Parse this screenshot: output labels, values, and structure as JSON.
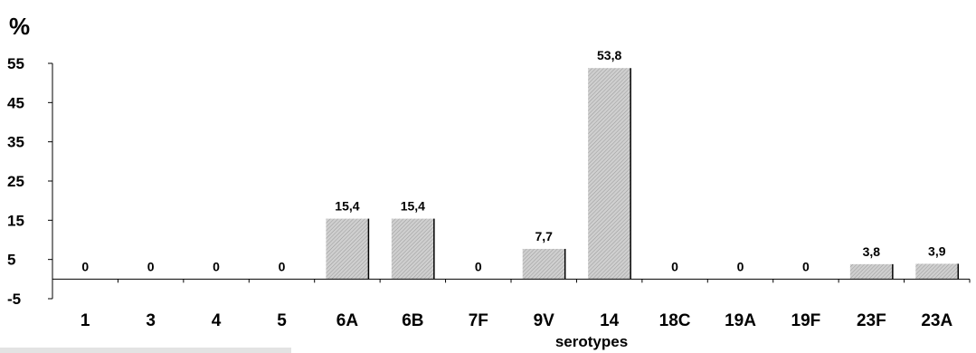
{
  "chart_data": {
    "type": "bar",
    "ylabel": "%",
    "xlabel": "serotypes",
    "ylim": [
      -5,
      55
    ],
    "yticks": [
      "55",
      "45",
      "35",
      "25",
      "15",
      "5",
      "-5"
    ],
    "ytick_values": [
      55,
      45,
      35,
      25,
      15,
      5,
      -5
    ],
    "categories": [
      "1",
      "3",
      "4",
      "5",
      "6A",
      "6B",
      "7F",
      "9V",
      "14",
      "18C",
      "19A",
      "19F",
      "23F",
      "23A"
    ],
    "values": [
      0,
      0,
      0,
      0,
      15.4,
      15.4,
      0,
      7.7,
      53.8,
      0,
      0,
      0,
      3.8,
      3.9
    ],
    "data_labels": [
      "0",
      "0",
      "0",
      "0",
      "15,4",
      "15,4",
      "0",
      "7,7",
      "53,8",
      "0",
      "0",
      "0",
      "3,8",
      "3,9"
    ],
    "grid": false,
    "legend": "none",
    "bar_color": "#c4c4c4",
    "bar_edge_color": "#000000"
  }
}
